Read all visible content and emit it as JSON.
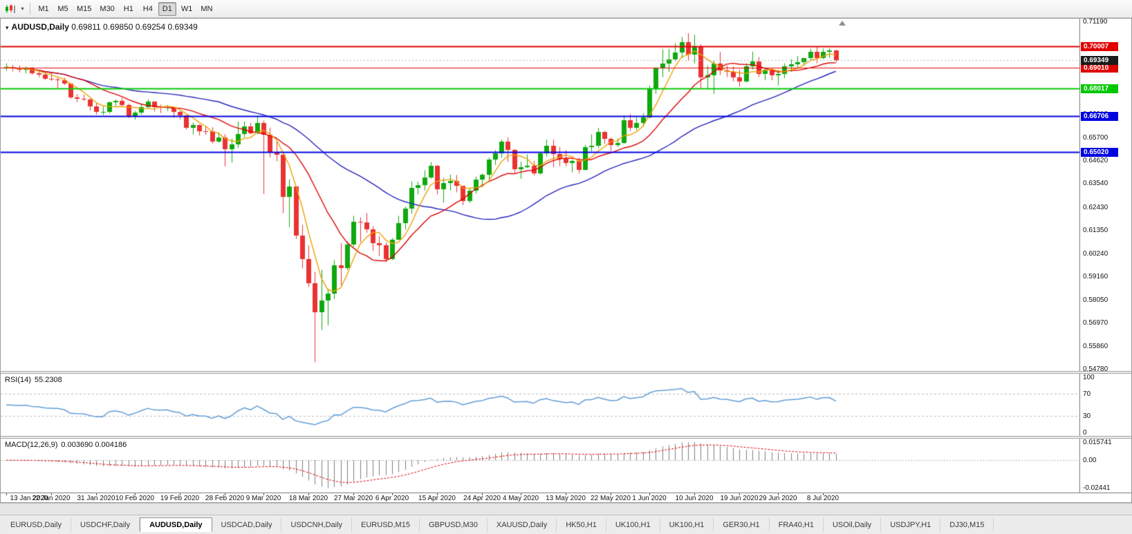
{
  "app": {
    "toolbar": {
      "chart_icon": "candlestick-chart",
      "timeframes": [
        "M1",
        "M5",
        "M15",
        "M30",
        "H1",
        "H4",
        "D1",
        "W1",
        "MN"
      ],
      "active_timeframe": "D1"
    },
    "tabs": {
      "active_index": 2,
      "items": [
        "EURUSD,Daily",
        "USDCHF,Daily",
        "AUDUSD,Daily",
        "USDCAD,Daily",
        "USDCNH,Daily",
        "EURUSD,M15",
        "GBPUSD,M30",
        "XAUUSD,Daily",
        "HK50,H1",
        "UK100,H1",
        "UK100,H1",
        "GER30,H1",
        "FRA40,H1",
        "USOil,Daily",
        "USDJPY,H1",
        "DJ30,M15"
      ]
    }
  },
  "chart_data": {
    "type": "candlestick",
    "symbol": "AUDUSD,Daily",
    "ohlc_label": "0.69811 0.69850 0.69254 0.69349",
    "open": 0.69811,
    "high": 0.6985,
    "low": 0.69254,
    "close": 0.69349,
    "current_price": 0.69349,
    "current_price_label": "0.69349",
    "colors": {
      "bull": "#0fa80f",
      "bear": "#ea3232",
      "current_badge": "#1a1a1a"
    },
    "price_axis": {
      "min": 0.5478,
      "max": 0.7119,
      "tick_values": [
        0.7119,
        0.7008,
        0.69,
        0.6789,
        0.6681,
        0.657,
        0.6462,
        0.6354,
        0.6243,
        0.6135,
        0.6024,
        0.5916,
        0.5805,
        0.5697,
        0.5586,
        0.5478
      ]
    },
    "x_ticks": [
      {
        "label": "13 Jan 2020",
        "i": 0
      },
      {
        "label": "22 Jan 2020",
        "i": 7
      },
      {
        "label": "31 Jan 2020",
        "i": 14
      },
      {
        "label": "10 Feb 2020",
        "i": 20
      },
      {
        "label": "19 Feb 2020",
        "i": 27
      },
      {
        "label": "28 Feb 2020",
        "i": 34
      },
      {
        "label": "9 Mar 2020",
        "i": 40
      },
      {
        "label": "18 Mar 2020",
        "i": 47
      },
      {
        "label": "27 Mar 2020",
        "i": 54
      },
      {
        "label": "6 Apr 2020",
        "i": 60
      },
      {
        "label": "15 Apr 2020",
        "i": 67
      },
      {
        "label": "24 Apr 2020",
        "i": 74
      },
      {
        "label": "4 May 2020",
        "i": 80
      },
      {
        "label": "13 May 2020",
        "i": 87
      },
      {
        "label": "22 May 2020",
        "i": 94
      },
      {
        "label": "1 Jun 2020",
        "i": 100
      },
      {
        "label": "10 Jun 2020",
        "i": 107
      },
      {
        "label": "19 Jun 2020",
        "i": 114
      },
      {
        "label": "29 Jun 2020",
        "i": 120
      },
      {
        "label": "8 Jul 2020",
        "i": 127
      }
    ],
    "levels": [
      {
        "price": 0.70007,
        "label": "0.70007",
        "color": "#e00000",
        "width": 2
      },
      {
        "price": 0.6901,
        "label": "0.69010",
        "color": "#e00000",
        "width": 1
      },
      {
        "price": 0.68017,
        "label": "0.68017",
        "color": "#00c800",
        "width": 2
      },
      {
        "price": 0.66706,
        "label": "0.66706",
        "color": "#0000e0",
        "width": 2
      },
      {
        "price": 0.6502,
        "label": "0.65020",
        "color": "#0000e0",
        "width": 2
      }
    ],
    "moving_averages": [
      {
        "period": 34,
        "color": "#2424bb",
        "type": "sma"
      },
      {
        "period": 13,
        "color": "#dd0000",
        "type": "sma"
      },
      {
        "period": 5,
        "color": "#eea000",
        "type": "sma"
      }
    ],
    "rsi": {
      "label": "RSI(14)",
      "value": "55.2308",
      "period": 14,
      "color": "#5f9cd6",
      "levels": [
        70,
        30
      ],
      "axis_ticks": [
        100,
        70,
        30,
        0
      ]
    },
    "macd": {
      "label": "MACD(12,26,9)",
      "values": "0.003690 0.004186",
      "fast": 12,
      "slow": 26,
      "signal_period": 9,
      "scale_max": 0.015741,
      "scale_min": -0.02441,
      "axis_top": "0.015741",
      "axis_zero": "0.00",
      "axis_bottom": "-0.02441",
      "histogram_color": "#7c7c7c",
      "signal_color": "#dd0000"
    },
    "candles": [
      [
        0.69,
        0.6921,
        0.6886,
        0.6903
      ],
      [
        0.6903,
        0.6912,
        0.6882,
        0.6897
      ],
      [
        0.6897,
        0.6911,
        0.6878,
        0.6889
      ],
      [
        0.6889,
        0.6906,
        0.6873,
        0.6896
      ],
      [
        0.6896,
        0.6904,
        0.6867,
        0.6874
      ],
      [
        0.6874,
        0.6886,
        0.6856,
        0.6869
      ],
      [
        0.6869,
        0.6879,
        0.6843,
        0.6849
      ],
      [
        0.6849,
        0.6879,
        0.6838,
        0.6845
      ],
      [
        0.6845,
        0.6856,
        0.6803,
        0.6843
      ],
      [
        0.6843,
        0.6853,
        0.6818,
        0.6824
      ],
      [
        0.6824,
        0.6828,
        0.6753,
        0.676
      ],
      [
        0.676,
        0.6776,
        0.6738,
        0.6754
      ],
      [
        0.6754,
        0.6774,
        0.6743,
        0.6751
      ],
      [
        0.6751,
        0.6756,
        0.6698,
        0.6719
      ],
      [
        0.6719,
        0.6736,
        0.6679,
        0.669
      ],
      [
        0.669,
        0.6716,
        0.6677,
        0.6691
      ],
      [
        0.6691,
        0.674,
        0.6684,
        0.6736
      ],
      [
        0.6736,
        0.675,
        0.6719,
        0.6744
      ],
      [
        0.6744,
        0.6756,
        0.6714,
        0.6724
      ],
      [
        0.6724,
        0.6731,
        0.6662,
        0.6671
      ],
      [
        0.6671,
        0.6696,
        0.6655,
        0.6689
      ],
      [
        0.6689,
        0.6731,
        0.6679,
        0.6714
      ],
      [
        0.6714,
        0.6751,
        0.6709,
        0.6739
      ],
      [
        0.6739,
        0.6742,
        0.6694,
        0.6716
      ],
      [
        0.6716,
        0.6726,
        0.6686,
        0.6713
      ],
      [
        0.6713,
        0.6724,
        0.6696,
        0.6716
      ],
      [
        0.6716,
        0.6717,
        0.6664,
        0.669
      ],
      [
        0.669,
        0.6696,
        0.6657,
        0.6676
      ],
      [
        0.6676,
        0.6677,
        0.6608,
        0.6615
      ],
      [
        0.6615,
        0.6641,
        0.6585,
        0.6629
      ],
      [
        0.6629,
        0.6632,
        0.658,
        0.6601
      ],
      [
        0.6601,
        0.6626,
        0.6584,
        0.6599
      ],
      [
        0.6599,
        0.6619,
        0.6542,
        0.6551
      ],
      [
        0.6551,
        0.6596,
        0.6546,
        0.6572
      ],
      [
        0.6572,
        0.6586,
        0.6434,
        0.6514
      ],
      [
        0.6514,
        0.6566,
        0.6452,
        0.6537
      ],
      [
        0.6537,
        0.6646,
        0.6521,
        0.6586
      ],
      [
        0.6586,
        0.6646,
        0.6572,
        0.6624
      ],
      [
        0.6624,
        0.6639,
        0.6586,
        0.6591
      ],
      [
        0.6591,
        0.6672,
        0.6586,
        0.6641
      ],
      [
        0.6641,
        0.6651,
        0.6304,
        0.6584
      ],
      [
        0.6584,
        0.6617,
        0.6477,
        0.6501
      ],
      [
        0.6501,
        0.6556,
        0.6459,
        0.6489
      ],
      [
        0.6489,
        0.6491,
        0.6214,
        0.6291
      ],
      [
        0.6291,
        0.6372,
        0.6148,
        0.6338
      ],
      [
        0.6338,
        0.6342,
        0.6092,
        0.6109
      ],
      [
        0.6109,
        0.6158,
        0.5953,
        0.5997
      ],
      [
        0.5997,
        0.6062,
        0.5864,
        0.5881
      ],
      [
        0.5881,
        0.5937,
        0.551,
        0.5746
      ],
      [
        0.5746,
        0.5946,
        0.5662,
        0.5801
      ],
      [
        0.5801,
        0.5856,
        0.5684,
        0.5832
      ],
      [
        0.5832,
        0.5992,
        0.5807,
        0.5966
      ],
      [
        0.5966,
        0.6072,
        0.5872,
        0.5954
      ],
      [
        0.5954,
        0.6081,
        0.5946,
        0.6064
      ],
      [
        0.6064,
        0.6201,
        0.6056,
        0.6172
      ],
      [
        0.6172,
        0.6194,
        0.6076,
        0.6169
      ],
      [
        0.6169,
        0.6214,
        0.6121,
        0.6136
      ],
      [
        0.6136,
        0.6152,
        0.6036,
        0.6071
      ],
      [
        0.6071,
        0.6106,
        0.6011,
        0.6061
      ],
      [
        0.6061,
        0.6076,
        0.5982,
        0.5996
      ],
      [
        0.5996,
        0.6096,
        0.5992,
        0.6087
      ],
      [
        0.6087,
        0.6201,
        0.6086,
        0.6166
      ],
      [
        0.6166,
        0.6244,
        0.6136,
        0.6236
      ],
      [
        0.6236,
        0.6364,
        0.6211,
        0.6334
      ],
      [
        0.6334,
        0.6362,
        0.6302,
        0.6346
      ],
      [
        0.6346,
        0.6416,
        0.6321,
        0.6381
      ],
      [
        0.6381,
        0.6454,
        0.6376,
        0.6436
      ],
      [
        0.6436,
        0.6441,
        0.6302,
        0.6326
      ],
      [
        0.6326,
        0.6381,
        0.6264,
        0.6356
      ],
      [
        0.6356,
        0.6396,
        0.6321,
        0.6366
      ],
      [
        0.6366,
        0.6394,
        0.6312,
        0.6341
      ],
      [
        0.6341,
        0.6342,
        0.6251,
        0.6271
      ],
      [
        0.6271,
        0.6331,
        0.6262,
        0.6321
      ],
      [
        0.6321,
        0.6386,
        0.6306,
        0.6371
      ],
      [
        0.6371,
        0.6401,
        0.6336,
        0.6396
      ],
      [
        0.6396,
        0.6476,
        0.6371,
        0.6466
      ],
      [
        0.6466,
        0.6511,
        0.6441,
        0.6496
      ],
      [
        0.6496,
        0.6561,
        0.6476,
        0.6551
      ],
      [
        0.6551,
        0.6571,
        0.6456,
        0.6511
      ],
      [
        0.6511,
        0.6516,
        0.6402,
        0.6421
      ],
      [
        0.6421,
        0.6456,
        0.6376,
        0.6431
      ],
      [
        0.6431,
        0.6491,
        0.6426,
        0.6436
      ],
      [
        0.6436,
        0.6461,
        0.6391,
        0.6401
      ],
      [
        0.6401,
        0.6501,
        0.6396,
        0.6496
      ],
      [
        0.6496,
        0.6561,
        0.6481,
        0.6531
      ],
      [
        0.6531,
        0.6561,
        0.6431,
        0.6491
      ],
      [
        0.6491,
        0.6526,
        0.6436,
        0.6471
      ],
      [
        0.6471,
        0.6511,
        0.6436,
        0.6451
      ],
      [
        0.6451,
        0.6466,
        0.6406,
        0.6461
      ],
      [
        0.6461,
        0.6476,
        0.6401,
        0.6416
      ],
      [
        0.6416,
        0.6536,
        0.6416,
        0.6526
      ],
      [
        0.6526,
        0.6586,
        0.6506,
        0.6531
      ],
      [
        0.6531,
        0.6616,
        0.6521,
        0.6596
      ],
      [
        0.6596,
        0.6601,
        0.6541,
        0.6566
      ],
      [
        0.6566,
        0.6571,
        0.6506,
        0.6536
      ],
      [
        0.6536,
        0.6566,
        0.6526,
        0.6546
      ],
      [
        0.6546,
        0.6676,
        0.6541,
        0.6651
      ],
      [
        0.6651,
        0.6681,
        0.6601,
        0.6616
      ],
      [
        0.6616,
        0.6666,
        0.6606,
        0.6641
      ],
      [
        0.6641,
        0.6686,
        0.6621,
        0.6666
      ],
      [
        0.6666,
        0.6816,
        0.6661,
        0.6801
      ],
      [
        0.6801,
        0.6901,
        0.6776,
        0.6896
      ],
      [
        0.6896,
        0.6986,
        0.6856,
        0.6921
      ],
      [
        0.6921,
        0.6989,
        0.6881,
        0.6941
      ],
      [
        0.6941,
        0.7016,
        0.6931,
        0.6971
      ],
      [
        0.6971,
        0.7046,
        0.6946,
        0.7021
      ],
      [
        0.7021,
        0.7064,
        0.6936,
        0.6961
      ],
      [
        0.6961,
        0.7056,
        0.6921,
        0.7001
      ],
      [
        0.7001,
        0.7011,
        0.6801,
        0.6856
      ],
      [
        0.6856,
        0.6911,
        0.6801,
        0.6866
      ],
      [
        0.6866,
        0.6936,
        0.6776,
        0.6921
      ],
      [
        0.6921,
        0.6976,
        0.6866,
        0.6886
      ],
      [
        0.6886,
        0.6911,
        0.6856,
        0.6881
      ],
      [
        0.6881,
        0.6906,
        0.6836,
        0.6856
      ],
      [
        0.6856,
        0.6891,
        0.6811,
        0.6836
      ],
      [
        0.6836,
        0.6921,
        0.6831,
        0.6906
      ],
      [
        0.6906,
        0.6976,
        0.6891,
        0.6931
      ],
      [
        0.6931,
        0.6951,
        0.6856,
        0.6871
      ],
      [
        0.6871,
        0.6901,
        0.6841,
        0.6891
      ],
      [
        0.6891,
        0.6901,
        0.6841,
        0.6866
      ],
      [
        0.6866,
        0.6891,
        0.6816,
        0.6871
      ],
      [
        0.6871,
        0.6921,
        0.6851,
        0.6906
      ],
      [
        0.6906,
        0.6941,
        0.6881,
        0.6916
      ],
      [
        0.6916,
        0.6956,
        0.6901,
        0.6926
      ],
      [
        0.6926,
        0.6946,
        0.6911,
        0.6946
      ],
      [
        0.6946,
        0.6991,
        0.6936,
        0.6976
      ],
      [
        0.6976,
        0.7001,
        0.6921,
        0.6946
      ],
      [
        0.6946,
        0.6991,
        0.6941,
        0.6976
      ],
      [
        0.6976,
        0.6991,
        0.6946,
        0.6981
      ],
      [
        0.69811,
        0.6985,
        0.69254,
        0.69349
      ]
    ]
  }
}
